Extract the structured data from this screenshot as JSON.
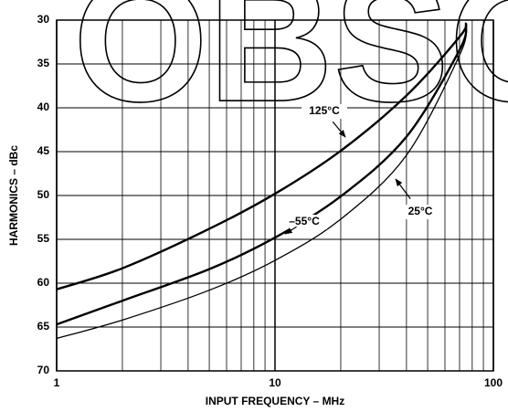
{
  "chart_data": {
    "type": "line",
    "watermark": "OBSOLETE",
    "x_label": "INPUT FREQUENCY – MHz",
    "y_label": "HARMONICS – dBc",
    "x": [
      1,
      2,
      5,
      10,
      20,
      40,
      70,
      75
    ],
    "series": [
      {
        "name": "125°C",
        "color": "#000",
        "width": 2.4,
        "values": [
          60.7,
          58.3,
          53.8,
          49.8,
          44.9,
          38.6,
          31.9,
          30.3
        ]
      },
      {
        "name": "–55°C",
        "color": "#000",
        "width": 2.4,
        "values": [
          64.7,
          62.0,
          58.4,
          54.8,
          50.1,
          43.3,
          33.4,
          30.5
        ]
      },
      {
        "name": "25°C",
        "color": "#000",
        "width": 1.3,
        "values": [
          66.3,
          64.2,
          60.8,
          57.4,
          52.7,
          45.4,
          34.0,
          30.8
        ]
      }
    ],
    "xlim": [
      1,
      100
    ],
    "xticks": [
      1,
      10,
      100
    ],
    "xscale": "log",
    "minor_xticks": [
      2,
      3,
      4,
      5,
      6,
      7,
      8,
      9,
      20,
      30,
      40,
      50,
      60,
      70,
      80,
      90
    ],
    "ylim": [
      70,
      30
    ],
    "yticks": [
      30,
      35,
      40,
      45,
      50,
      55,
      60,
      65,
      70
    ],
    "grid": true
  }
}
